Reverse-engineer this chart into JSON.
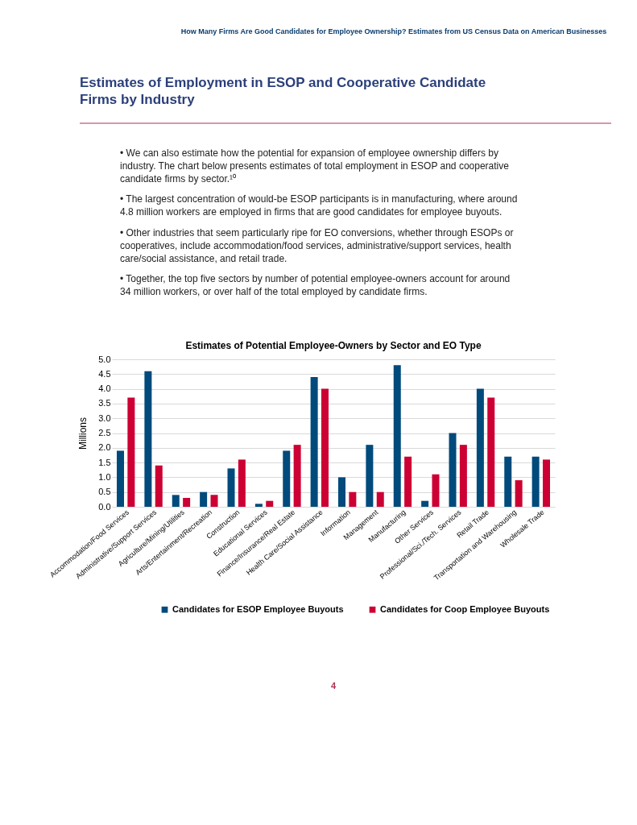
{
  "chart_data": {
    "type": "bar",
    "title": "Estimates of Potential Employee-Owners by Sector and EO Type",
    "ylabel": "Millions",
    "categories": [
      "Accommodation/Food Services",
      "Administrative/Support Services",
      "Agriculture/Mining/Utilities",
      "Arts/Entertainment/Recreation",
      "Construction",
      "Educational Services",
      "Finance/Insurance/Real Estate",
      "Health Care/Social Assistance",
      "Information",
      "Management",
      "Manufacturing",
      "Other Services",
      "Professional/Sci./Tech. Services",
      "Retail Trade",
      "Transportation and Warehousing",
      "Wholesale Trade"
    ],
    "series": [
      {
        "name": "Candidates for ESOP Employee Buyouts",
        "color": "#004a7c",
        "values": [
          1.9,
          4.6,
          0.4,
          0.5,
          1.3,
          0.1,
          1.9,
          4.4,
          1.0,
          2.1,
          4.8,
          0.2,
          2.5,
          4.0,
          1.7,
          1.7
        ]
      },
      {
        "name": "Candidates for Coop Employee Buyouts",
        "color": "#cc0033",
        "values": [
          3.7,
          1.4,
          0.3,
          0.4,
          1.6,
          0.2,
          2.1,
          4.0,
          0.5,
          0.5,
          1.7,
          1.1,
          2.1,
          3.7,
          0.9,
          1.6
        ]
      }
    ],
    "ylim": [
      0,
      5
    ],
    "yticks": [
      {
        "value": 0,
        "label": "0.0"
      },
      {
        "value": 0.5,
        "label": "0.5"
      },
      {
        "value": 1,
        "label": "1.0"
      },
      {
        "value": 1.5,
        "label": "1.5"
      },
      {
        "value": 2,
        "label": "2.0"
      },
      {
        "value": 2.5,
        "label": "2.5"
      },
      {
        "value": 3,
        "label": "3.0"
      },
      {
        "value": 3.5,
        "label": "3.5"
      },
      {
        "value": 4,
        "label": "4.0"
      },
      {
        "value": 4.5,
        "label": "4.5"
      },
      {
        "value": 5,
        "label": "5.0"
      }
    ],
    "grid": "y",
    "legend": "bottom",
    "annotations": [
      "How Many Firms Are Good Candidates for Employee Ownership? Estimates from US Census Data on American Businesses",
      "Estimates of Employment in ESOP and Cooperative Candidate Firms by Industry",
      "•  We can also estimate how the potential for expansion of employee ownership differs by industry. The chart below presents estimates of total employment in ESOP and cooperative candidate firms by sector.¹⁰",
      "•  The largest concentration of would-be ESOP participants is in manufacturing, where around 4.8 million workers are employed in firms that are good candidates for employee buyouts.",
      "•  Other industries that seem particularly ripe for EO conversions, whether through ESOPs or cooperatives, include accommodation/food services, administrative/support services, health care/social assistance, and retail trade.",
      "•  Together, the top five sectors by number of potential employee-owners account for around 34 million workers, or over half of the total employed by candidate firms.",
      "4"
    ]
  }
}
